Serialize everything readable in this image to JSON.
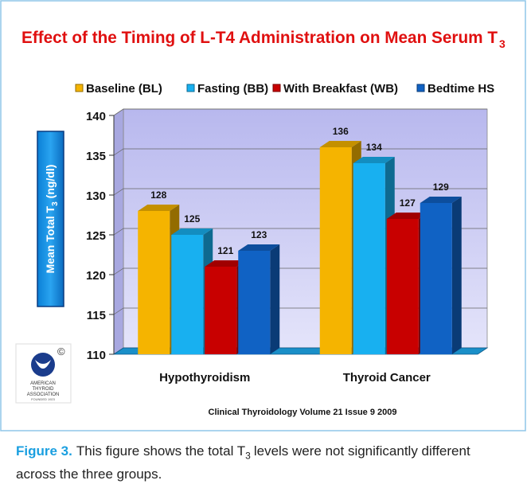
{
  "chart_data": {
    "type": "bar3d",
    "title": "Effect of the Timing of L-T4 Administration on Mean Serum T",
    "title_subscript": "3",
    "y_label": "Mean Total T",
    "y_label_subscript": "3",
    "y_label_unit": "(ng/dl)",
    "source": "Clinical Thyroidology Volume 21 Issue 9 2009",
    "categories": [
      "Hypothyroidism",
      "Thyroid Cancer"
    ],
    "series": [
      {
        "name": "Baseline (BL)",
        "color": "#f5b400",
        "values": [
          128,
          136
        ]
      },
      {
        "name": "Fasting (BB)",
        "color": "#18b0f0",
        "values": [
          125,
          134
        ]
      },
      {
        "name": "With Breakfast (WB)",
        "color": "#c80000",
        "values": [
          121,
          127
        ]
      },
      {
        "name": "Bedtime HS",
        "color": "#1062c4",
        "values": [
          123,
          129
        ]
      }
    ],
    "ylim": [
      110,
      140
    ],
    "yticks": [
      110,
      115,
      120,
      125,
      130,
      135,
      140
    ],
    "grid": true,
    "legend": "top"
  },
  "logo": {
    "copyright": "©",
    "line1": "AMERICAN",
    "line2": "THYROID",
    "line3": "ASSOCIATION",
    "line4": "FOUNDED 1923"
  },
  "caption": {
    "label": "Figure 3.",
    "text_1": "This figure shows the total T",
    "subscript": "3",
    "text_2": "levels were not significantly different across the three groups."
  }
}
